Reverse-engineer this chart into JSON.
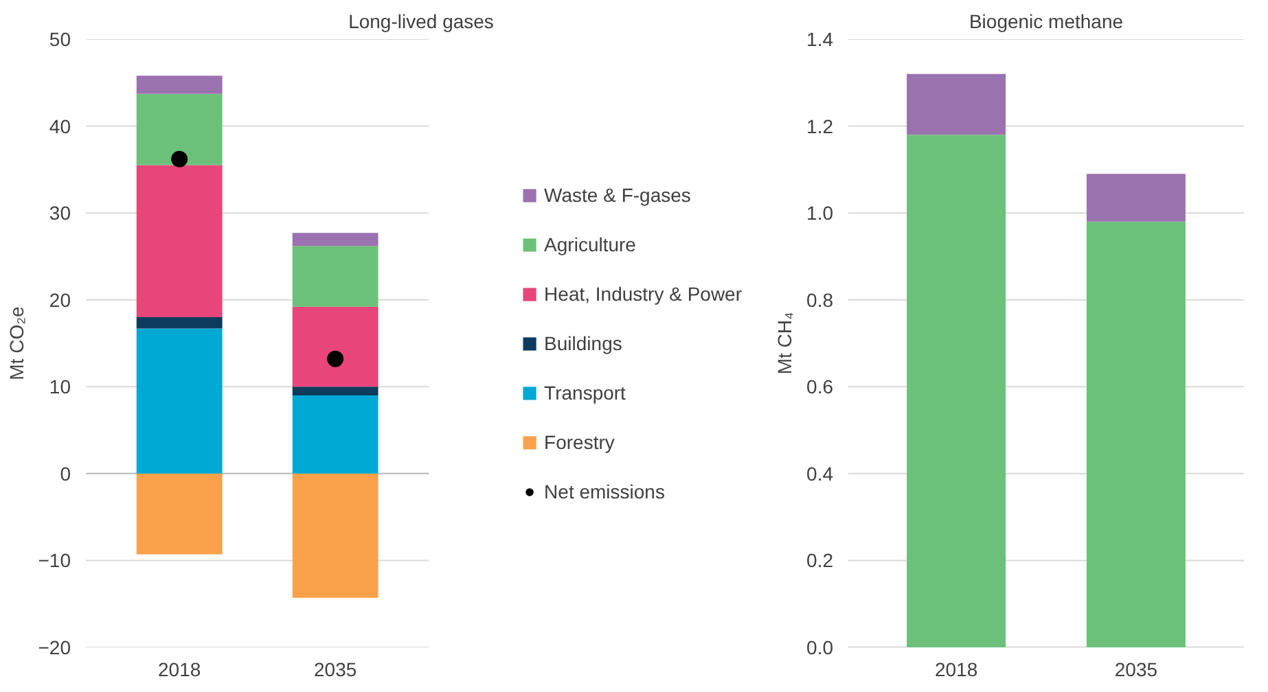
{
  "chart_data": [
    {
      "type": "bar",
      "title": "Long-lived gases",
      "ylabel": "Mt CO₂e",
      "categories": [
        "2018",
        "2035"
      ],
      "stacked": true,
      "ylim": [
        -20,
        50
      ],
      "yticks": [
        -20,
        -10,
        0,
        10,
        20,
        30,
        40,
        50
      ],
      "grid": "y",
      "legend": "right",
      "series": [
        {
          "name": "Forestry",
          "color": "#f9a24b",
          "values": [
            -9.3,
            -14.3
          ]
        },
        {
          "name": "Transport",
          "color": "#00a9d4",
          "values": [
            16.7,
            9.0
          ]
        },
        {
          "name": "Buildings",
          "color": "#0d3b5e",
          "values": [
            1.3,
            1.0
          ]
        },
        {
          "name": "Heat, Industry & Power",
          "color": "#e8457a",
          "values": [
            17.5,
            9.2
          ]
        },
        {
          "name": "Agriculture",
          "color": "#6cc17a",
          "values": [
            8.2,
            7.0
          ]
        },
        {
          "name": "Waste & F-gases",
          "color": "#9b72b0",
          "values": [
            2.1,
            1.5
          ]
        },
        {
          "name": "Net emissions",
          "type": "scatter",
          "marker": "circle",
          "color": "#000000",
          "values": [
            36.2,
            13.2
          ]
        }
      ]
    },
    {
      "type": "bar",
      "title": "Biogenic methane",
      "ylabel": "Mt CH₄",
      "categories": [
        "2018",
        "2035"
      ],
      "stacked": true,
      "ylim": [
        0,
        1.4
      ],
      "yticks": [
        {
          "value": 0,
          "label": "0.0"
        },
        0.2,
        0.4,
        0.6,
        0.8,
        {
          "value": 1,
          "label": "1.0"
        },
        1.2,
        1.4
      ],
      "grid": "y",
      "series": [
        {
          "color": "#6cc17a",
          "values": [
            1.18,
            0.98
          ]
        },
        {
          "color": "#9b72b0",
          "values": [
            0.14,
            0.11
          ]
        }
      ]
    }
  ]
}
